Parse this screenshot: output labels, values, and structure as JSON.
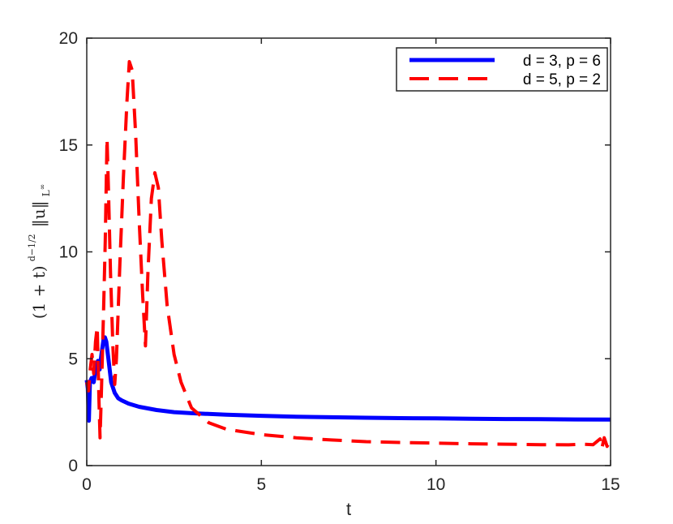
{
  "chart_data": {
    "type": "line",
    "xlabel": "t",
    "ylabel": {
      "prefix": "(1 + t)",
      "exp_num": "d−1",
      "exp_den": "2",
      "norm": "‖u‖",
      "sub": "L",
      "sub_sup": "∞"
    },
    "xlim": [
      0,
      15
    ],
    "ylim": [
      0,
      20
    ],
    "xticks": [
      0,
      5,
      10,
      15
    ],
    "yticks": [
      0,
      5,
      10,
      15,
      20
    ],
    "grid": false,
    "legend_position": "top-right",
    "series": [
      {
        "name": "d = 3, p = 6",
        "color": "#0000ff",
        "style": "solid",
        "points": [
          [
            0.0,
            4.0
          ],
          [
            0.03,
            3.6
          ],
          [
            0.06,
            2.1
          ],
          [
            0.09,
            3.9
          ],
          [
            0.14,
            4.1
          ],
          [
            0.2,
            3.9
          ],
          [
            0.26,
            4.6
          ],
          [
            0.32,
            4.9
          ],
          [
            0.37,
            4.5
          ],
          [
            0.42,
            5.2
          ],
          [
            0.48,
            5.9
          ],
          [
            0.52,
            6.0
          ],
          [
            0.56,
            5.8
          ],
          [
            0.62,
            5.0
          ],
          [
            0.7,
            3.9
          ],
          [
            0.8,
            3.4
          ],
          [
            0.9,
            3.15
          ],
          [
            1.0,
            3.05
          ],
          [
            1.2,
            2.9
          ],
          [
            1.5,
            2.75
          ],
          [
            2.0,
            2.6
          ],
          [
            2.5,
            2.5
          ],
          [
            3.0,
            2.45
          ],
          [
            4.0,
            2.38
          ],
          [
            5.0,
            2.33
          ],
          [
            6.0,
            2.29
          ],
          [
            7.0,
            2.26
          ],
          [
            8.0,
            2.24
          ],
          [
            9.0,
            2.22
          ],
          [
            10.0,
            2.21
          ],
          [
            11.0,
            2.19
          ],
          [
            12.0,
            2.18
          ],
          [
            13.0,
            2.17
          ],
          [
            14.0,
            2.16
          ],
          [
            15.0,
            2.15
          ]
        ]
      },
      {
        "name": "d = 5, p = 2",
        "color": "#ff0000",
        "style": "dashed",
        "points": [
          [
            0.0,
            3.9
          ],
          [
            0.05,
            3.5
          ],
          [
            0.1,
            4.5
          ],
          [
            0.15,
            5.2
          ],
          [
            0.2,
            4.3
          ],
          [
            0.25,
            5.8
          ],
          [
            0.3,
            6.5
          ],
          [
            0.35,
            3.0
          ],
          [
            0.38,
            1.3
          ],
          [
            0.42,
            3.5
          ],
          [
            0.48,
            7.2
          ],
          [
            0.53,
            10.5
          ],
          [
            0.58,
            15.3
          ],
          [
            0.62,
            13.0
          ],
          [
            0.68,
            9.0
          ],
          [
            0.75,
            5.5
          ],
          [
            0.8,
            3.8
          ],
          [
            0.85,
            5.0
          ],
          [
            0.95,
            9.5
          ],
          [
            1.05,
            13.5
          ],
          [
            1.15,
            17.0
          ],
          [
            1.22,
            18.9
          ],
          [
            1.3,
            18.5
          ],
          [
            1.4,
            15.5
          ],
          [
            1.5,
            11.5
          ],
          [
            1.6,
            8.0
          ],
          [
            1.68,
            5.6
          ],
          [
            1.75,
            9.0
          ],
          [
            1.85,
            12.5
          ],
          [
            1.95,
            13.7
          ],
          [
            2.05,
            13.0
          ],
          [
            2.15,
            10.5
          ],
          [
            2.3,
            7.5
          ],
          [
            2.5,
            5.2
          ],
          [
            2.7,
            3.9
          ],
          [
            3.0,
            2.7
          ],
          [
            3.5,
            2.0
          ],
          [
            4.0,
            1.7
          ],
          [
            5.0,
            1.45
          ],
          [
            6.0,
            1.3
          ],
          [
            7.0,
            1.2
          ],
          [
            8.0,
            1.12
          ],
          [
            9.0,
            1.08
          ],
          [
            10.0,
            1.05
          ],
          [
            11.0,
            1.02
          ],
          [
            12.0,
            1.0
          ],
          [
            13.0,
            0.98
          ],
          [
            13.8,
            0.97
          ],
          [
            14.2,
            1.0
          ],
          [
            14.5,
            0.98
          ],
          [
            14.7,
            1.25
          ],
          [
            14.75,
            0.8
          ],
          [
            14.82,
            1.3
          ],
          [
            14.9,
            0.9
          ],
          [
            15.0,
            1.2
          ]
        ]
      }
    ]
  }
}
